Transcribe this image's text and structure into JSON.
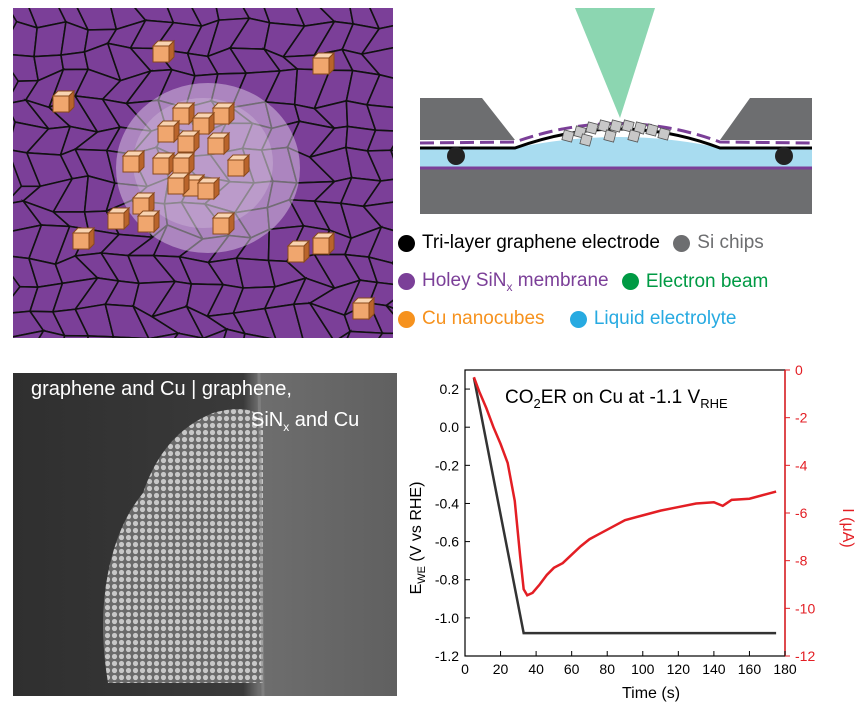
{
  "legend": {
    "items": [
      {
        "label": "Tri-layer graphene electrode",
        "color": "#000000",
        "text_color": "#000000"
      },
      {
        "label": "Si chips",
        "color": "#6d6e70",
        "text_color": "#6d6e70"
      },
      {
        "label": "Holey SiN",
        "sub": "x",
        "label_after": " membrane",
        "color": "#7b3f98",
        "text_color": "#7b3f98"
      },
      {
        "label": "Electron beam",
        "color": "#009a44",
        "text_color": "#009a44"
      },
      {
        "label": "Cu nanocubes",
        "color": "#f6921e",
        "text_color": "#f6921e"
      },
      {
        "label": "Liquid electrolyte",
        "color": "#27aae1",
        "text_color": "#27aae1"
      }
    ]
  },
  "micrograph": {
    "caption_left": "graphene and Cu",
    "separator": "|",
    "caption_right_1": "graphene,",
    "caption_right_2_main": "SiN",
    "caption_right_2_sub": "x",
    "caption_right_2_tail": " and Cu"
  },
  "chart_data": {
    "type": "line",
    "title_main": "CO",
    "title_sub": "2",
    "title_tail": "ER on Cu at -1.1 V",
    "title_sub2": "RHE",
    "xlabel": "Time (s)",
    "ylabel_left_main": "E",
    "ylabel_left_sub": "WE",
    "ylabel_left_tail": " (V vs RHE)",
    "ylabel_right": "I (μA)",
    "xlim": [
      0,
      180
    ],
    "xticks": [
      0,
      20,
      40,
      60,
      80,
      100,
      120,
      140,
      160,
      180
    ],
    "ylim_left": [
      -1.2,
      0.3
    ],
    "yticks_left": [
      0.2,
      0.0,
      -0.2,
      -0.4,
      -0.6,
      -0.8,
      -1.0,
      -1.2
    ],
    "ylim_right": [
      -12,
      0
    ],
    "yticks_right": [
      0,
      -2,
      -4,
      -6,
      -8,
      -10,
      -12
    ],
    "series": [
      {
        "axis": "left",
        "color": "#333333",
        "x": [
          5,
          33,
          175
        ],
        "y": [
          0.26,
          -1.08,
          -1.08
        ]
      },
      {
        "axis": "right",
        "color": "#e31e24",
        "x": [
          5,
          8,
          12,
          16,
          20,
          24,
          28,
          31,
          33,
          35,
          38,
          42,
          46,
          50,
          55,
          60,
          65,
          70,
          75,
          80,
          90,
          100,
          110,
          120,
          130,
          140,
          145,
          150,
          160,
          170,
          175
        ],
        "y": [
          -0.3,
          -0.9,
          -1.6,
          -2.4,
          -3.1,
          -3.9,
          -5.5,
          -7.8,
          -9.2,
          -9.45,
          -9.35,
          -9.0,
          -8.6,
          -8.3,
          -8.1,
          -7.75,
          -7.4,
          -7.1,
          -6.9,
          -6.7,
          -6.3,
          -6.1,
          -5.9,
          -5.75,
          -5.6,
          -5.55,
          -5.7,
          -5.45,
          -5.4,
          -5.2,
          -5.1
        ]
      }
    ]
  }
}
